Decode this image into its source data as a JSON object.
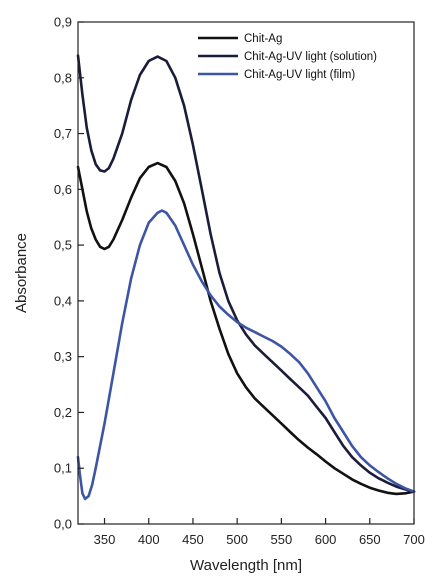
{
  "chart_data": {
    "type": "line",
    "xlabel": "Wavelength [nm]",
    "ylabel": "Absorbance",
    "xlim": [
      320,
      700
    ],
    "ylim": [
      0,
      0.9
    ],
    "x_ticks": [
      350,
      400,
      450,
      500,
      550,
      600,
      650,
      700
    ],
    "y_ticks": [
      "0,0",
      "0,1",
      "0,2",
      "0,3",
      "0,4",
      "0,5",
      "0,6",
      "0,7",
      "0,8",
      "0,9"
    ],
    "grid": false,
    "legend_position": "top-right",
    "series": [
      {
        "name": "Chit-Ag",
        "color": "#111111",
        "points": [
          [
            320,
            0.64
          ],
          [
            325,
            0.6
          ],
          [
            330,
            0.56
          ],
          [
            335,
            0.53
          ],
          [
            340,
            0.51
          ],
          [
            345,
            0.497
          ],
          [
            350,
            0.493
          ],
          [
            355,
            0.497
          ],
          [
            360,
            0.51
          ],
          [
            370,
            0.545
          ],
          [
            380,
            0.585
          ],
          [
            390,
            0.62
          ],
          [
            400,
            0.64
          ],
          [
            410,
            0.647
          ],
          [
            420,
            0.64
          ],
          [
            430,
            0.615
          ],
          [
            440,
            0.575
          ],
          [
            450,
            0.52
          ],
          [
            460,
            0.46
          ],
          [
            470,
            0.4
          ],
          [
            480,
            0.35
          ],
          [
            490,
            0.305
          ],
          [
            500,
            0.27
          ],
          [
            510,
            0.245
          ],
          [
            520,
            0.225
          ],
          [
            530,
            0.21
          ],
          [
            540,
            0.195
          ],
          [
            550,
            0.18
          ],
          [
            560,
            0.165
          ],
          [
            570,
            0.15
          ],
          [
            580,
            0.137
          ],
          [
            590,
            0.125
          ],
          [
            600,
            0.112
          ],
          [
            610,
            0.1
          ],
          [
            620,
            0.09
          ],
          [
            630,
            0.08
          ],
          [
            640,
            0.072
          ],
          [
            650,
            0.065
          ],
          [
            660,
            0.06
          ],
          [
            670,
            0.056
          ],
          [
            680,
            0.054
          ],
          [
            690,
            0.055
          ],
          [
            700,
            0.058
          ]
        ]
      },
      {
        "name": "Chit-Ag-UV light (solution)",
        "color": "#1b1b3a",
        "points": [
          [
            320,
            0.84
          ],
          [
            325,
            0.77
          ],
          [
            330,
            0.71
          ],
          [
            335,
            0.67
          ],
          [
            340,
            0.645
          ],
          [
            345,
            0.634
          ],
          [
            350,
            0.632
          ],
          [
            355,
            0.638
          ],
          [
            360,
            0.655
          ],
          [
            370,
            0.7
          ],
          [
            380,
            0.76
          ],
          [
            390,
            0.805
          ],
          [
            400,
            0.83
          ],
          [
            410,
            0.838
          ],
          [
            420,
            0.83
          ],
          [
            430,
            0.8
          ],
          [
            440,
            0.75
          ],
          [
            450,
            0.68
          ],
          [
            460,
            0.6
          ],
          [
            470,
            0.52
          ],
          [
            480,
            0.45
          ],
          [
            490,
            0.4
          ],
          [
            500,
            0.365
          ],
          [
            510,
            0.34
          ],
          [
            520,
            0.32
          ],
          [
            530,
            0.305
          ],
          [
            540,
            0.29
          ],
          [
            550,
            0.275
          ],
          [
            560,
            0.26
          ],
          [
            570,
            0.245
          ],
          [
            580,
            0.23
          ],
          [
            590,
            0.21
          ],
          [
            600,
            0.19
          ],
          [
            610,
            0.165
          ],
          [
            620,
            0.14
          ],
          [
            630,
            0.12
          ],
          [
            640,
            0.105
          ],
          [
            650,
            0.092
          ],
          [
            660,
            0.082
          ],
          [
            670,
            0.074
          ],
          [
            680,
            0.067
          ],
          [
            690,
            0.062
          ],
          [
            700,
            0.058
          ]
        ]
      },
      {
        "name": "Chit-Ag-UV light (film)",
        "color": "#3d55a5",
        "points": [
          [
            320,
            0.12
          ],
          [
            322,
            0.09
          ],
          [
            325,
            0.055
          ],
          [
            328,
            0.045
          ],
          [
            332,
            0.05
          ],
          [
            336,
            0.07
          ],
          [
            340,
            0.1
          ],
          [
            345,
            0.14
          ],
          [
            350,
            0.18
          ],
          [
            360,
            0.27
          ],
          [
            370,
            0.36
          ],
          [
            380,
            0.44
          ],
          [
            390,
            0.5
          ],
          [
            400,
            0.54
          ],
          [
            410,
            0.558
          ],
          [
            415,
            0.562
          ],
          [
            420,
            0.558
          ],
          [
            430,
            0.535
          ],
          [
            440,
            0.5
          ],
          [
            450,
            0.465
          ],
          [
            460,
            0.435
          ],
          [
            470,
            0.41
          ],
          [
            480,
            0.39
          ],
          [
            490,
            0.375
          ],
          [
            500,
            0.362
          ],
          [
            510,
            0.352
          ],
          [
            520,
            0.344
          ],
          [
            530,
            0.336
          ],
          [
            540,
            0.328
          ],
          [
            550,
            0.318
          ],
          [
            560,
            0.305
          ],
          [
            570,
            0.29
          ],
          [
            580,
            0.27
          ],
          [
            590,
            0.245
          ],
          [
            600,
            0.22
          ],
          [
            610,
            0.19
          ],
          [
            620,
            0.165
          ],
          [
            630,
            0.14
          ],
          [
            640,
            0.12
          ],
          [
            650,
            0.105
          ],
          [
            660,
            0.093
          ],
          [
            670,
            0.082
          ],
          [
            680,
            0.072
          ],
          [
            690,
            0.064
          ],
          [
            700,
            0.058
          ]
        ]
      }
    ]
  }
}
